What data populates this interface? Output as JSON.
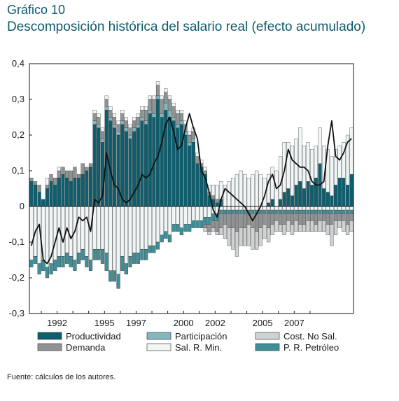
{
  "title": "Gráfico 10",
  "subtitle": "Descomposición histórica del salario real (efecto acumulado)",
  "source": "Fuente: cálculos de los autores.",
  "chart_data": {
    "type": "bar",
    "stacked": true,
    "frequency": "quarterly",
    "x_start": "1990Q2",
    "ylim": [
      -0.3,
      0.4
    ],
    "y_ticks": [
      -0.3,
      -0.2,
      -0.1,
      0,
      0.1,
      0.2,
      0.3,
      0.4
    ],
    "y_tick_labels": [
      "-0,3",
      "-0,2",
      "-0,1",
      "0",
      "0,1",
      "0,2",
      "0,3",
      "0,4"
    ],
    "x_tick_labels": [
      {
        "label": "1992",
        "at": "1992Q1"
      },
      {
        "label": "1995",
        "at": "1995Q1"
      },
      {
        "label": "1997",
        "at": "1997Q1"
      },
      {
        "label": "2000",
        "at": "2000Q1"
      },
      {
        "label": "2002",
        "at": "2002Q1"
      },
      {
        "label": "2005",
        "at": "2005Q1"
      },
      {
        "label": "2007",
        "at": "2007Q1"
      }
    ],
    "legend_position": "bottom",
    "grid": false,
    "series": [
      {
        "name": "Productividad",
        "color": "#0e5e6e",
        "values": [
          0.07,
          0.06,
          0.04,
          0.02,
          0.05,
          0.07,
          0.06,
          0.08,
          0.09,
          0.08,
          0.07,
          0.08,
          0.08,
          0.09,
          0.1,
          0.11,
          0.23,
          0.22,
          0.18,
          0.27,
          0.24,
          0.22,
          0.2,
          0.23,
          0.21,
          0.19,
          0.21,
          0.22,
          0.24,
          0.23,
          0.26,
          0.25,
          0.3,
          0.25,
          0.27,
          0.25,
          0.24,
          0.22,
          0.23,
          0.2,
          0.17,
          0.18,
          0.12,
          0.11,
          0.09,
          0.03,
          0.02,
          0.01,
          0.02,
          0.0,
          0.0,
          0.0,
          0.0,
          0.0,
          0.0,
          0.0,
          0.0,
          0.0,
          0.0,
          0.0,
          0.01,
          0.02,
          0.0,
          0.02,
          0.04,
          0.05,
          0.03,
          0.06,
          0.07,
          0.05,
          0.07,
          0.06,
          0.08,
          0.12,
          0.05,
          0.04,
          0.03,
          0.06,
          0.08,
          0.08,
          0.06,
          0.09
        ]
      },
      {
        "name": "Participación",
        "color": "#84b6bd",
        "values": [
          0.0,
          0.0,
          0.0,
          0.0,
          0.0,
          0.0,
          0.0,
          0.0,
          0.0,
          0.0,
          0.0,
          0.0,
          0.0,
          0.0,
          0.0,
          0.0,
          0.01,
          0.01,
          0.01,
          0.01,
          0.01,
          0.01,
          0.01,
          0.01,
          0.01,
          0.01,
          0.01,
          0.01,
          0.01,
          0.01,
          0.01,
          0.01,
          0.01,
          0.01,
          0.02,
          0.02,
          0.01,
          0.01,
          0.01,
          0.01,
          0.01,
          0.01,
          0.0,
          0.0,
          0.0,
          0.0,
          0.0,
          0.0,
          0.0,
          0.0,
          0.0,
          0.0,
          0.0,
          0.0,
          0.0,
          0.0,
          0.0,
          0.0,
          0.0,
          0.0,
          0.0,
          0.0,
          0.0,
          0.0,
          0.0,
          0.0,
          0.0,
          0.0,
          0.0,
          0.0,
          0.0,
          0.0,
          0.0,
          0.0,
          0.0,
          0.0,
          0.0,
          0.0,
          0.0,
          0.0,
          0.0,
          0.0
        ]
      },
      {
        "name": "Cost. No Sal.",
        "color": "#cfd2d2",
        "values": [
          0.0,
          0.0,
          0.0,
          0.0,
          0.0,
          0.0,
          0.0,
          0.0,
          0.0,
          0.0,
          0.0,
          0.0,
          0.0,
          0.0,
          0.0,
          0.0,
          0.0,
          0.0,
          0.0,
          0.0,
          0.0,
          0.0,
          0.0,
          0.0,
          0.0,
          0.0,
          0.0,
          0.0,
          0.0,
          0.0,
          0.0,
          0.0,
          0.0,
          0.0,
          0.0,
          0.0,
          0.0,
          0.0,
          0.0,
          0.0,
          0.0,
          0.0,
          0.0,
          0.0,
          0.0,
          0.0,
          0.0,
          0.0,
          0.0,
          0.0,
          0.0,
          0.0,
          0.0,
          0.0,
          0.0,
          0.0,
          0.0,
          0.0,
          0.0,
          0.0,
          0.0,
          0.0,
          0.0,
          0.0,
          0.0,
          0.0,
          0.0,
          0.0,
          0.0,
          0.0,
          0.0,
          0.0,
          0.0,
          0.0,
          0.0,
          0.0,
          0.0,
          0.0,
          0.0,
          0.0,
          0.0,
          0.0
        ]
      },
      {
        "name": "Demanda",
        "color": "#8f9393",
        "values": [
          0.01,
          0.01,
          0.02,
          0.0,
          0.01,
          0.02,
          0.02,
          0.02,
          0.02,
          0.02,
          0.03,
          0.03,
          0.01,
          0.03,
          0.01,
          0.01,
          0.02,
          0.02,
          0.02,
          0.02,
          0.02,
          0.02,
          0.02,
          0.02,
          0.02,
          0.02,
          0.02,
          0.02,
          0.02,
          0.03,
          0.03,
          0.04,
          0.03,
          0.04,
          0.03,
          0.03,
          0.03,
          0.03,
          0.02,
          0.02,
          0.02,
          0.02,
          0.02,
          0.01,
          0.01,
          0.01,
          0.01,
          0.01,
          0.0,
          0.0,
          0.0,
          0.0,
          0.0,
          0.0,
          0.0,
          0.0,
          0.0,
          0.0,
          0.0,
          0.0,
          0.0,
          0.0,
          0.0,
          0.0,
          0.0,
          0.0,
          0.0,
          0.0,
          0.0,
          0.0,
          0.0,
          0.0,
          0.0,
          0.0,
          0.0,
          0.0,
          0.0,
          0.0,
          0.0,
          0.0,
          0.0,
          0.0
        ]
      },
      {
        "name": "Sal. R. Min.",
        "color": "#f0f5f6",
        "values": [
          0.0,
          0.0,
          0.0,
          0.0,
          0.02,
          0.0,
          0.0,
          0.01,
          0.0,
          0.0,
          0.0,
          0.0,
          0.0,
          0.0,
          0.0,
          0.0,
          0.01,
          0.01,
          0.01,
          0.01,
          0.01,
          0.01,
          0.01,
          0.01,
          0.01,
          0.01,
          0.01,
          0.01,
          0.01,
          0.01,
          0.01,
          0.01,
          0.01,
          0.01,
          0.01,
          0.01,
          0.01,
          0.01,
          0.01,
          0.01,
          0.01,
          0.01,
          0.01,
          0.01,
          0.01,
          0.02,
          0.03,
          0.04,
          0.05,
          0.06,
          0.07,
          0.08,
          0.09,
          0.1,
          0.09,
          0.08,
          0.09,
          0.1,
          0.09,
          0.08,
          0.08,
          0.09,
          0.1,
          0.12,
          0.14,
          0.13,
          0.14,
          0.13,
          0.15,
          0.12,
          0.11,
          0.1,
          0.09,
          0.1,
          0.12,
          0.12,
          0.11,
          0.1,
          0.09,
          0.1,
          0.14,
          0.13
        ]
      },
      {
        "name": "P. R. Petróleo",
        "color": "#3f8f98",
        "values": [
          0.0,
          0.0,
          0.0,
          0.0,
          0.0,
          0.0,
          0.0,
          0.0,
          0.0,
          0.0,
          0.0,
          0.0,
          0.0,
          0.0,
          0.0,
          0.0,
          0.0,
          0.0,
          0.0,
          0.0,
          0.0,
          0.0,
          0.0,
          0.0,
          0.0,
          0.0,
          0.0,
          0.0,
          0.0,
          0.0,
          0.0,
          0.0,
          0.0,
          0.0,
          0.0,
          0.0,
          0.0,
          0.0,
          0.0,
          0.0,
          0.0,
          0.0,
          0.0,
          0.0,
          0.0,
          0.0,
          0.0,
          0.0,
          0.0,
          0.0,
          0.0,
          0.0,
          0.0,
          0.0,
          0.0,
          0.0,
          0.0,
          0.0,
          0.0,
          0.0,
          0.0,
          0.0,
          0.0,
          0.0,
          0.0,
          0.0,
          0.0,
          0.0,
          0.0,
          0.0,
          0.0,
          0.0,
          0.0,
          0.0,
          0.0,
          0.0,
          0.0,
          0.0,
          0.0,
          0.0,
          0.0,
          0.0
        ]
      }
    ],
    "negative_series": [
      {
        "name": "Sal. R. Min.",
        "values": [
          -0.15,
          -0.14,
          -0.16,
          -0.15,
          -0.17,
          -0.16,
          -0.15,
          -0.14,
          -0.14,
          -0.13,
          -0.14,
          -0.15,
          -0.13,
          -0.12,
          -0.14,
          -0.15,
          -0.12,
          -0.12,
          -0.12,
          -0.13,
          -0.18,
          -0.18,
          -0.19,
          -0.14,
          -0.16,
          -0.14,
          -0.13,
          -0.13,
          -0.12,
          -0.12,
          -0.11,
          -0.11,
          -0.1,
          -0.08,
          -0.07,
          -0.08,
          -0.05,
          -0.05,
          -0.06,
          -0.05,
          -0.05,
          -0.04,
          -0.04,
          -0.04,
          -0.03,
          -0.03,
          -0.02,
          -0.02,
          -0.01,
          -0.01,
          -0.01,
          -0.01,
          -0.01,
          -0.01,
          -0.01,
          -0.01,
          -0.01,
          -0.01,
          -0.01,
          -0.01,
          -0.01,
          -0.01,
          -0.01,
          -0.01,
          -0.01,
          -0.01,
          -0.01,
          -0.01,
          -0.01,
          -0.01,
          -0.01,
          -0.01,
          -0.01,
          -0.01,
          -0.01,
          -0.01,
          -0.01,
          -0.01,
          -0.01,
          -0.01,
          -0.01,
          -0.01
        ]
      },
      {
        "name": "P. R. Petróleo",
        "values": [
          -0.02,
          -0.02,
          -0.03,
          -0.03,
          -0.03,
          -0.03,
          -0.03,
          -0.03,
          -0.03,
          -0.03,
          -0.03,
          -0.03,
          -0.03,
          -0.03,
          -0.03,
          -0.03,
          -0.03,
          -0.03,
          -0.04,
          -0.05,
          -0.03,
          -0.03,
          -0.04,
          -0.04,
          -0.03,
          -0.03,
          -0.03,
          -0.03,
          -0.03,
          -0.03,
          -0.02,
          -0.02,
          -0.02,
          -0.02,
          -0.02,
          -0.02,
          -0.02,
          -0.02,
          -0.02,
          -0.02,
          -0.02,
          -0.02,
          -0.02,
          -0.02,
          -0.02,
          -0.02,
          -0.02,
          -0.02,
          -0.01,
          -0.01,
          -0.01,
          -0.01,
          -0.01,
          -0.01,
          -0.01,
          -0.01,
          -0.01,
          -0.01,
          -0.01,
          -0.01,
          -0.01,
          -0.01,
          -0.01,
          -0.01,
          -0.01,
          -0.01,
          -0.01,
          -0.01,
          -0.01,
          -0.01,
          -0.01,
          -0.01,
          -0.01,
          -0.01,
          -0.01,
          -0.01,
          -0.01,
          -0.01,
          -0.01,
          -0.01,
          -0.01,
          -0.01
        ]
      },
      {
        "name": "Demanda",
        "values": [
          0.0,
          0.0,
          0.0,
          0.0,
          0.0,
          0.0,
          0.0,
          0.0,
          0.0,
          0.0,
          0.0,
          0.0,
          0.0,
          0.0,
          0.0,
          0.0,
          0.0,
          0.0,
          0.0,
          0.0,
          0.0,
          0.0,
          0.0,
          0.0,
          0.0,
          0.0,
          0.0,
          0.0,
          0.0,
          0.0,
          0.0,
          0.0,
          0.0,
          0.0,
          0.0,
          0.0,
          0.0,
          0.0,
          0.0,
          0.0,
          0.0,
          0.0,
          0.0,
          0.0,
          -0.01,
          -0.02,
          -0.02,
          -0.03,
          -0.04,
          -0.03,
          -0.04,
          -0.04,
          -0.05,
          -0.04,
          -0.04,
          -0.03,
          -0.04,
          -0.05,
          -0.04,
          -0.03,
          -0.04,
          -0.03,
          -0.02,
          -0.03,
          -0.03,
          -0.02,
          -0.03,
          -0.02,
          -0.03,
          -0.03,
          -0.02,
          -0.02,
          -0.03,
          -0.02,
          -0.02,
          -0.03,
          -0.03,
          -0.02,
          -0.02,
          -0.02,
          -0.03,
          -0.02
        ]
      },
      {
        "name": "Cost. No Sal.",
        "values": [
          0.0,
          0.0,
          0.0,
          0.0,
          0.0,
          0.0,
          0.0,
          0.0,
          0.0,
          0.0,
          0.0,
          0.0,
          0.0,
          0.0,
          0.0,
          0.0,
          0.0,
          0.0,
          0.0,
          0.0,
          0.0,
          0.0,
          0.0,
          0.0,
          0.0,
          0.0,
          0.0,
          0.0,
          0.0,
          0.0,
          0.0,
          0.0,
          0.0,
          0.0,
          0.0,
          0.0,
          0.0,
          0.0,
          0.0,
          0.0,
          0.0,
          0.0,
          0.0,
          0.0,
          -0.01,
          -0.01,
          -0.01,
          -0.01,
          -0.02,
          -0.04,
          -0.05,
          -0.06,
          -0.07,
          -0.05,
          -0.05,
          -0.06,
          -0.06,
          -0.05,
          -0.05,
          -0.04,
          -0.04,
          -0.03,
          -0.03,
          -0.02,
          -0.03,
          -0.03,
          -0.03,
          -0.03,
          -0.02,
          -0.02,
          -0.03,
          -0.03,
          -0.02,
          -0.03,
          -0.03,
          -0.03,
          -0.06,
          -0.04,
          -0.02,
          -0.03,
          -0.03,
          -0.03
        ]
      }
    ],
    "line": {
      "name": "Salario real",
      "color": "#111111",
      "values": [
        -0.11,
        -0.07,
        -0.05,
        -0.15,
        -0.16,
        -0.14,
        -0.1,
        -0.06,
        -0.1,
        -0.06,
        -0.09,
        -0.07,
        -0.03,
        -0.04,
        -0.03,
        -0.07,
        0.02,
        0.01,
        0.03,
        0.15,
        0.1,
        0.06,
        0.05,
        0.02,
        0.01,
        0.02,
        0.04,
        0.06,
        0.09,
        0.08,
        0.09,
        0.12,
        0.14,
        0.18,
        0.23,
        0.25,
        0.21,
        0.16,
        0.17,
        0.22,
        0.26,
        0.22,
        0.19,
        0.1,
        0.08,
        0.04,
        -0.01,
        -0.03,
        0.02,
        0.05,
        0.04,
        0.03,
        0.02,
        0.01,
        0.0,
        -0.02,
        -0.04,
        -0.02,
        0.0,
        0.03,
        0.07,
        0.09,
        0.05,
        0.06,
        0.1,
        0.16,
        0.13,
        0.12,
        0.11,
        0.11,
        0.1,
        0.07,
        0.06,
        0.06,
        0.07,
        0.17,
        0.24,
        0.14,
        0.13,
        0.15,
        0.18,
        0.19
      ]
    }
  },
  "legend": [
    {
      "label": "Productividad",
      "color": "#0e5e6e"
    },
    {
      "label": "Participación",
      "color": "#84b6bd"
    },
    {
      "label": "Cost. No Sal.",
      "color": "#cfd2d2"
    },
    {
      "label": "Demanda",
      "color": "#8f9393"
    },
    {
      "label": "Sal. R. Min.",
      "color": "#f0f5f6"
    },
    {
      "label": "P. R. Petróleo",
      "color": "#3f8f98"
    }
  ]
}
